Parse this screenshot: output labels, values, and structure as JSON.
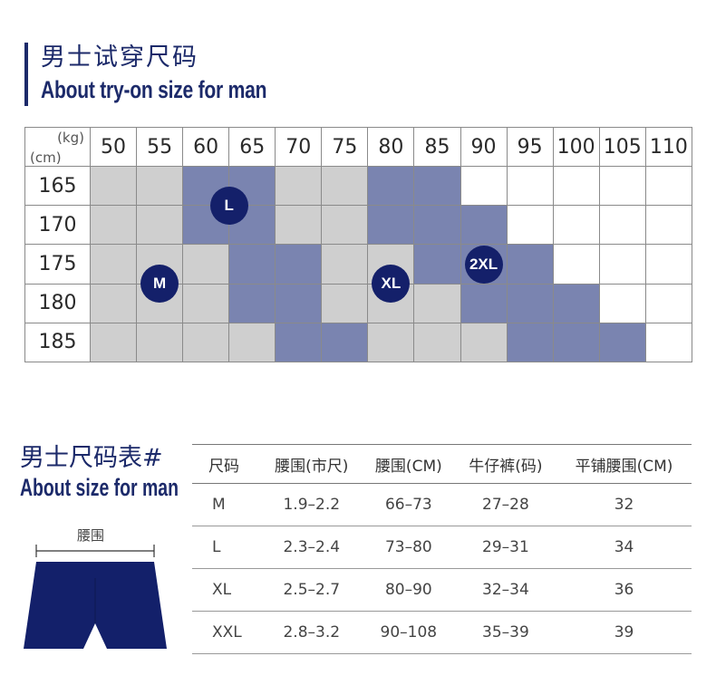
{
  "header": {
    "title_cn": "男士试穿尺码",
    "title_en": "About try-on size for man"
  },
  "fit_chart": {
    "weight_unit": "(kg)",
    "height_unit": "(cm)",
    "weights": [
      "50",
      "55",
      "60",
      "65",
      "70",
      "75",
      "80",
      "85",
      "90",
      "95",
      "100",
      "105",
      "110"
    ],
    "heights": [
      "165",
      "170",
      "175",
      "180",
      "185"
    ],
    "grid": [
      [
        "g",
        "g",
        "b",
        "b",
        "g",
        "g",
        "b",
        "b",
        "w",
        "w",
        "w",
        "w",
        "w"
      ],
      [
        "g",
        "g",
        "b",
        "b",
        "g",
        "g",
        "b",
        "b",
        "b",
        "w",
        "w",
        "w",
        "w"
      ],
      [
        "g",
        "g",
        "g",
        "b",
        "b",
        "g",
        "g",
        "b",
        "b",
        "b",
        "w",
        "w",
        "w"
      ],
      [
        "g",
        "g",
        "g",
        "b",
        "b",
        "g",
        "g",
        "g",
        "b",
        "b",
        "b",
        "w",
        "w"
      ],
      [
        "g",
        "g",
        "g",
        "g",
        "b",
        "b",
        "g",
        "g",
        "g",
        "b",
        "b",
        "b",
        "w"
      ]
    ],
    "colors": {
      "w": "#ffffff",
      "g": "#cfcfcf",
      "b": "#7a84b0"
    },
    "badges": [
      {
        "label": "L",
        "row": 0.5,
        "col": 2.5
      },
      {
        "label": "M",
        "row": 2.5,
        "col": 1.0
      },
      {
        "label": "XL",
        "row": 2.5,
        "col": 6.0
      },
      {
        "label": "2XL",
        "row": 2.0,
        "col": 8.0
      }
    ]
  },
  "size_chart": {
    "title_cn": "男士尺码表#",
    "title_en": "About size for man",
    "waist_label": "腰围",
    "columns": [
      "尺码",
      "腰围(市尺)",
      "腰围(CM)",
      "牛仔裤(码)",
      "平铺腰围(CM)"
    ],
    "rows": [
      [
        "M",
        "1.9–2.2",
        "66–73",
        "27–28",
        "32"
      ],
      [
        "L",
        "2.3–2.4",
        "73–80",
        "29–31",
        "34"
      ],
      [
        "XL",
        "2.5–2.7",
        "80–90",
        "32–34",
        "36"
      ],
      [
        "XXL",
        "2.8–3.2",
        "90–108",
        "35–39",
        "39"
      ]
    ]
  },
  "accent_color": "#1c2a6a"
}
